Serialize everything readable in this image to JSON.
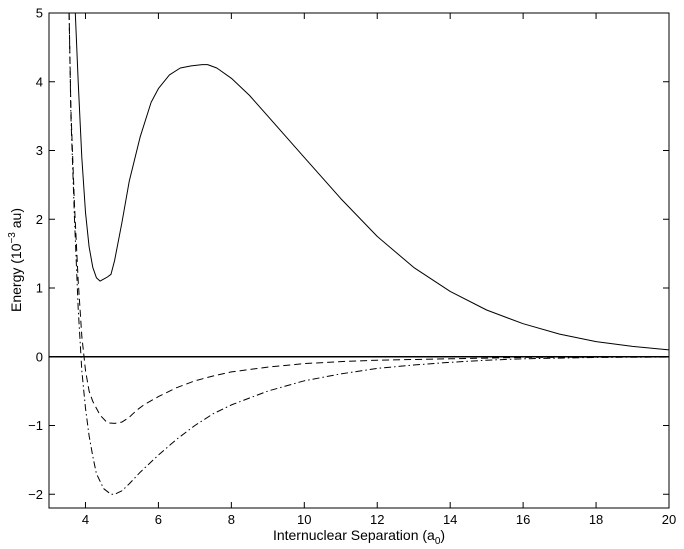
{
  "chart_data": {
    "type": "line",
    "xlabel": {
      "text": "Internuclear Separation (a",
      "subscript": "0",
      "suffix": ")"
    },
    "ylabel": {
      "prefix": "Energy (10",
      "superscript": "−3",
      "suffix": " au)"
    },
    "xlim": [
      3,
      20
    ],
    "ylim": [
      -2.2,
      5
    ],
    "xticks": [
      4,
      6,
      8,
      10,
      12,
      14,
      16,
      18,
      20
    ],
    "yticks": [
      -2,
      -1,
      0,
      1,
      2,
      3,
      4,
      5
    ],
    "xtick_labels": [
      "4",
      "6",
      "8",
      "10",
      "12",
      "14",
      "16",
      "18",
      "20"
    ],
    "ytick_labels": [
      "−2",
      "−1",
      "0",
      "1",
      "2",
      "3",
      "4",
      "5"
    ],
    "grid": false,
    "legend": "none",
    "reference_line": {
      "y": 0
    },
    "series": [
      {
        "style": "solid",
        "color": "#000000",
        "x": [
          3.72,
          3.8,
          3.9,
          4.0,
          4.1,
          4.2,
          4.3,
          4.4,
          4.5,
          4.6,
          4.7,
          4.8,
          5.0,
          5.2,
          5.5,
          5.8,
          6.0,
          6.3,
          6.6,
          6.9,
          7.2,
          7.35,
          7.6,
          8.0,
          8.5,
          9.0,
          9.5,
          10.0,
          11.0,
          12.0,
          13.0,
          14.0,
          15.0,
          16.0,
          17.0,
          18.0,
          19.0,
          20.0
        ],
        "y": [
          5.0,
          4.0,
          2.9,
          2.1,
          1.6,
          1.3,
          1.15,
          1.1,
          1.13,
          1.16,
          1.2,
          1.4,
          1.95,
          2.55,
          3.2,
          3.7,
          3.9,
          4.1,
          4.2,
          4.23,
          4.25,
          4.25,
          4.2,
          4.05,
          3.8,
          3.5,
          3.2,
          2.9,
          2.3,
          1.75,
          1.3,
          0.95,
          0.68,
          0.48,
          0.33,
          0.22,
          0.15,
          0.1
        ]
      },
      {
        "style": "dashed",
        "color": "#000000",
        "x": [
          3.55,
          3.6,
          3.7,
          3.8,
          3.9,
          4.0,
          4.1,
          4.2,
          4.4,
          4.6,
          4.8,
          5.0,
          5.2,
          5.4,
          5.6,
          6.0,
          6.5,
          7.0,
          7.5,
          8.0,
          9.0,
          10.0,
          11.0,
          12.0,
          13.0,
          14.0,
          15.0,
          16.0,
          17.0,
          18.0,
          20.0
        ],
        "y": [
          5.0,
          3.6,
          2.2,
          1.1,
          0.3,
          -0.2,
          -0.5,
          -0.65,
          -0.85,
          -0.96,
          -0.97,
          -0.95,
          -0.88,
          -0.78,
          -0.7,
          -0.58,
          -0.45,
          -0.35,
          -0.28,
          -0.22,
          -0.15,
          -0.1,
          -0.07,
          -0.05,
          -0.04,
          -0.03,
          -0.02,
          -0.01,
          -0.008,
          -0.005,
          -0.002
        ]
      },
      {
        "style": "dashdot",
        "color": "#000000",
        "x": [
          3.55,
          3.6,
          3.7,
          3.8,
          3.9,
          4.0,
          4.1,
          4.2,
          4.3,
          4.5,
          4.7,
          4.8,
          5.0,
          5.2,
          5.5,
          6.0,
          6.5,
          7.0,
          7.5,
          8.0,
          9.0,
          10.0,
          11.0,
          12.0,
          13.0,
          14.0,
          15.0,
          16.0,
          17.0,
          18.0,
          20.0
        ],
        "y": [
          5.0,
          3.5,
          2.0,
          0.7,
          -0.2,
          -0.75,
          -1.15,
          -1.45,
          -1.7,
          -1.92,
          -2.0,
          -2.0,
          -1.95,
          -1.85,
          -1.68,
          -1.43,
          -1.2,
          -1.0,
          -0.83,
          -0.7,
          -0.5,
          -0.35,
          -0.25,
          -0.17,
          -0.12,
          -0.08,
          -0.05,
          -0.03,
          -0.02,
          -0.01,
          -0.005
        ]
      }
    ]
  }
}
